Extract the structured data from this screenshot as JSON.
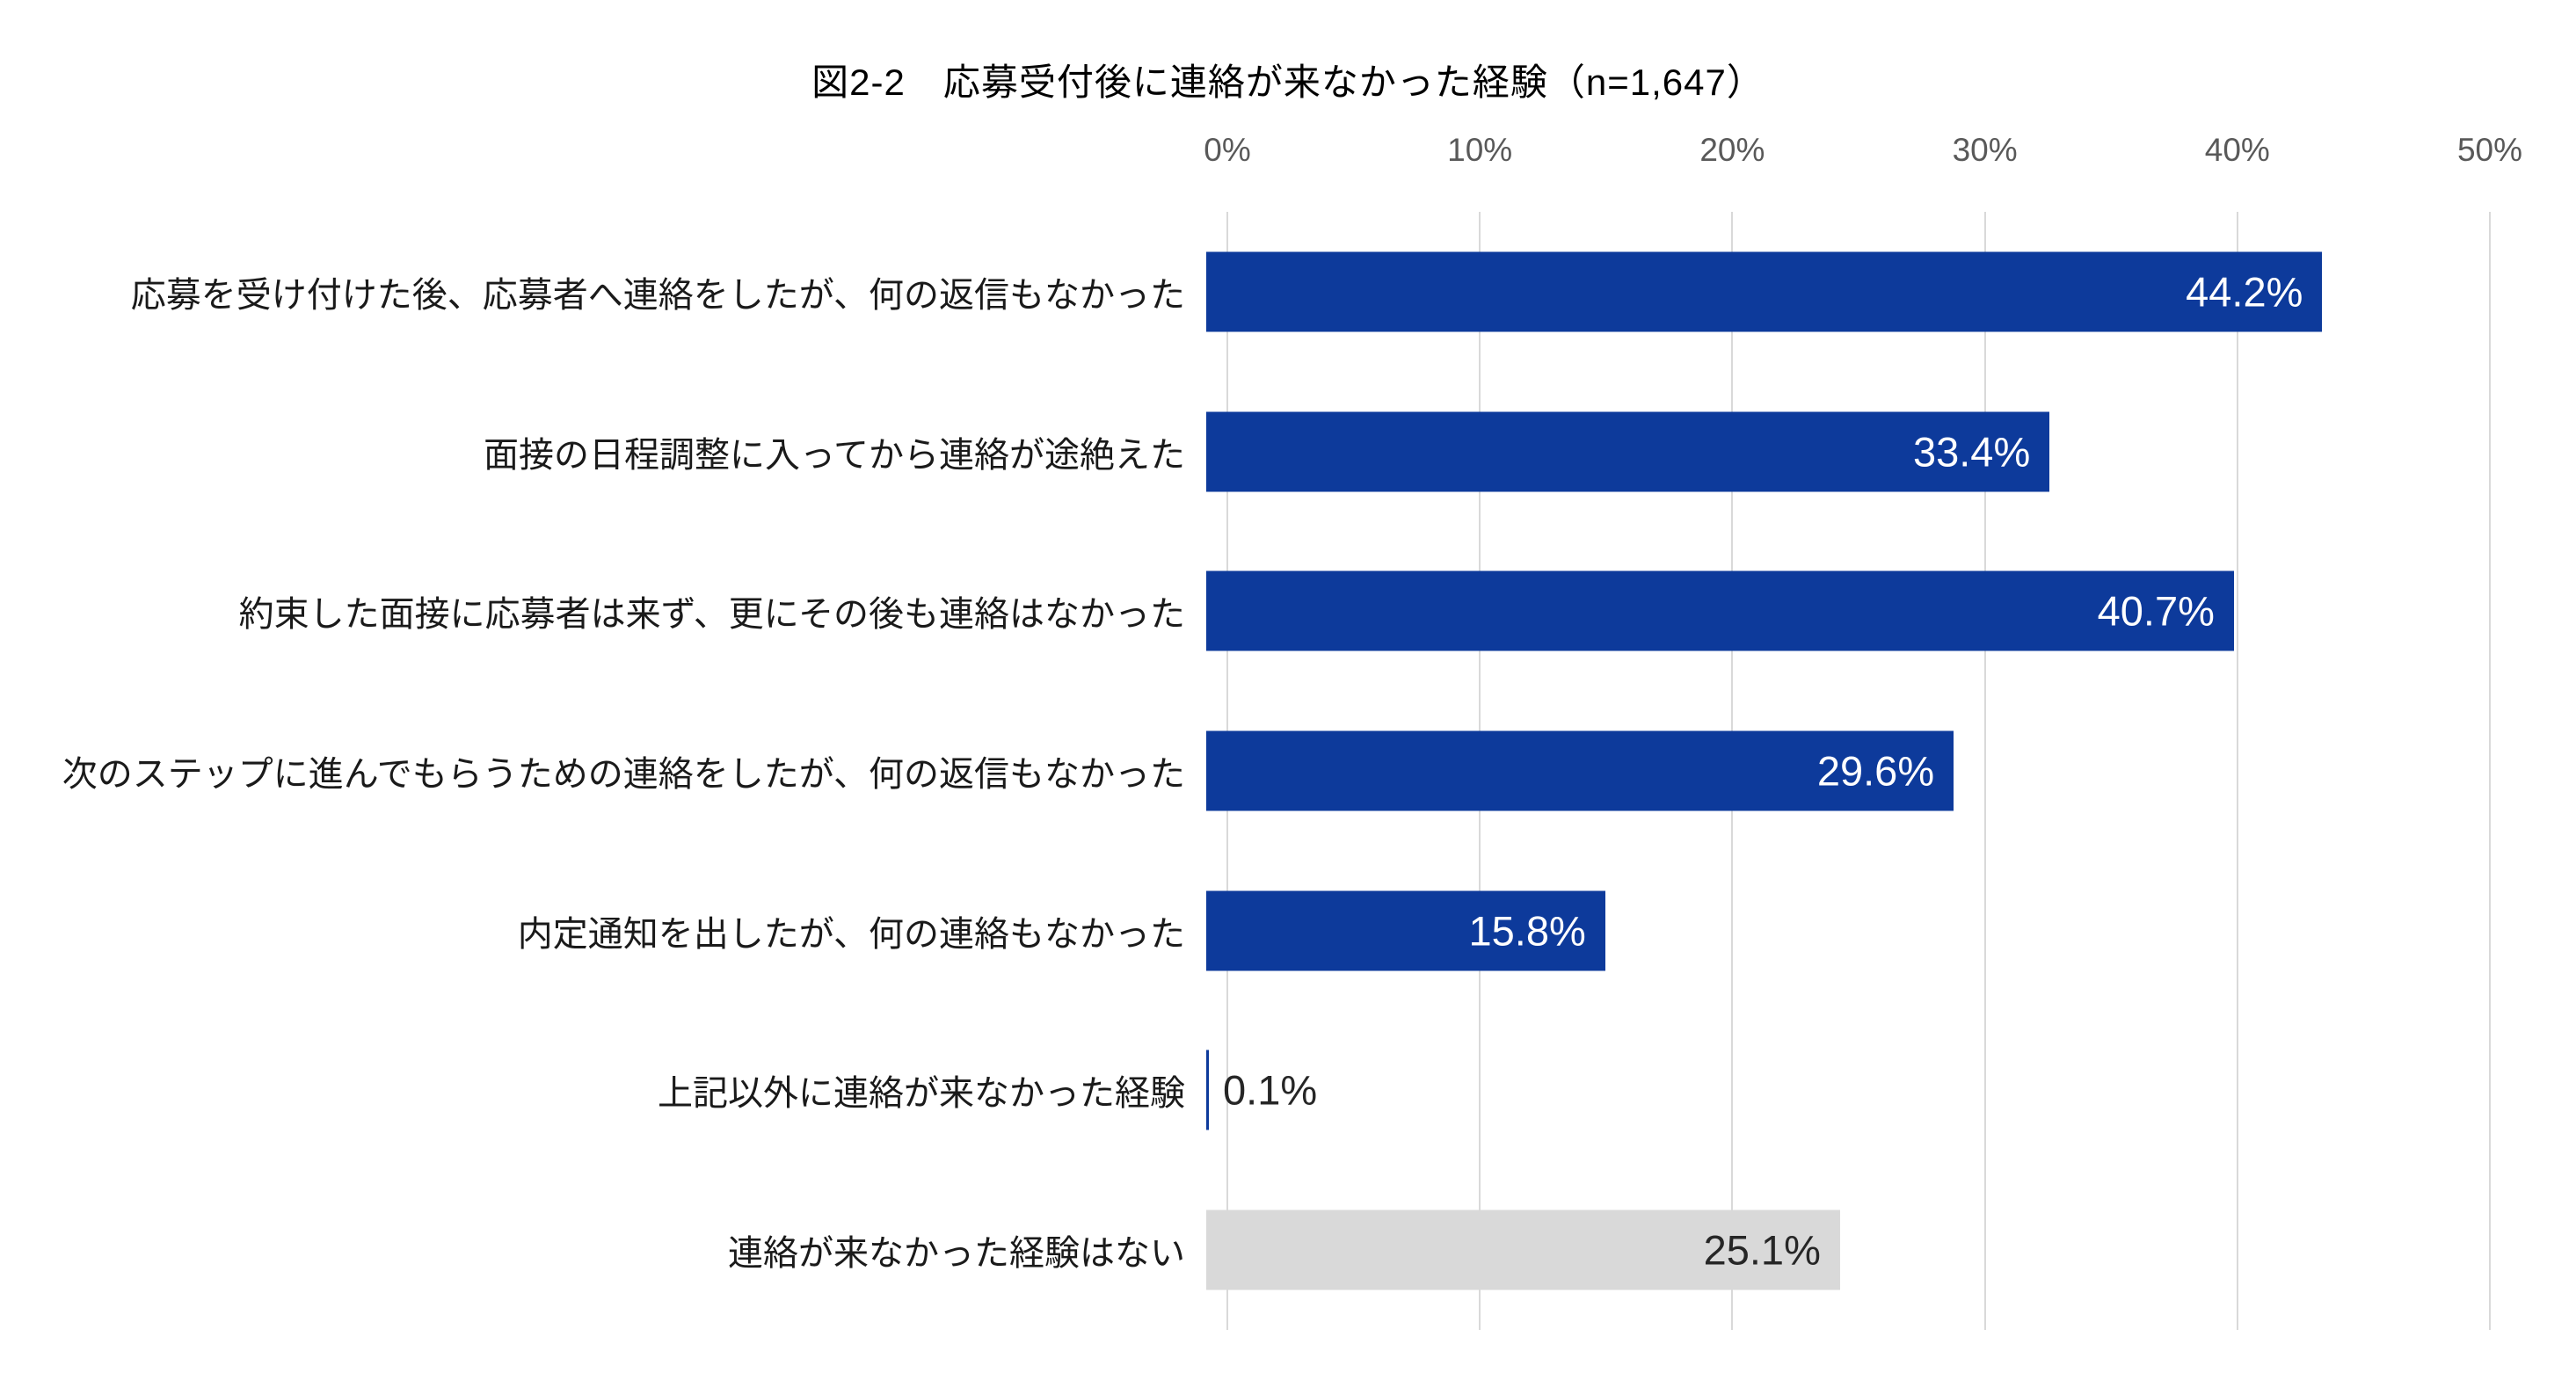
{
  "title": "図2-2　応募受付後に連絡が来なかった経験（n=1,647）",
  "axis": {
    "tick_labels": [
      "0%",
      "10%",
      "20%",
      "30%",
      "40%",
      "50%"
    ],
    "max_percent": 50
  },
  "colors": {
    "bar_primary": "#0D3A9B",
    "bar_neutral": "#D9D9D9",
    "gridline": "#D9D9D9",
    "tick_text": "#595959",
    "category_text": "#1A1A1A",
    "value_inside": "#FFFFFF",
    "value_dark": "#262626",
    "background": "#FFFFFF"
  },
  "chart_data": {
    "type": "bar",
    "orientation": "horizontal",
    "title": "図2-2　応募受付後に連絡が来なかった経験（n=1,647）",
    "sample_size_label": "n=1,647",
    "xlim": [
      0,
      50
    ],
    "x_tick_percents": [
      0,
      10,
      20,
      30,
      40,
      50
    ],
    "grid": "vertical-only",
    "legend": "none",
    "categories": [
      "応募を受け付けた後、応募者へ連絡をしたが、何の返信もなかった",
      "面接の日程調整に入ってから連絡が途絶えた",
      "約束した面接に応募者は来ず、更にその後も連絡はなかった",
      "次のステップに進んでもらうための連絡をしたが、何の返信もなかった",
      "内定通知を出したが、何の連絡もなかった",
      "上記以外に連絡が来なかった経験",
      "連絡が来なかった経験はない"
    ],
    "values": [
      44.2,
      33.4,
      40.7,
      29.6,
      15.8,
      0.1,
      25.1
    ],
    "value_labels": [
      "44.2%",
      "33.4%",
      "40.7%",
      "29.6%",
      "15.8%",
      "0.1%",
      "25.1%"
    ],
    "bar_styles": [
      "primary",
      "primary",
      "primary",
      "primary",
      "primary",
      "primary",
      "neutral"
    ],
    "value_label_styles": [
      "inside-light",
      "inside-light",
      "inside-light",
      "inside-light",
      "inside-light",
      "outside-dark",
      "inside-dark"
    ]
  }
}
